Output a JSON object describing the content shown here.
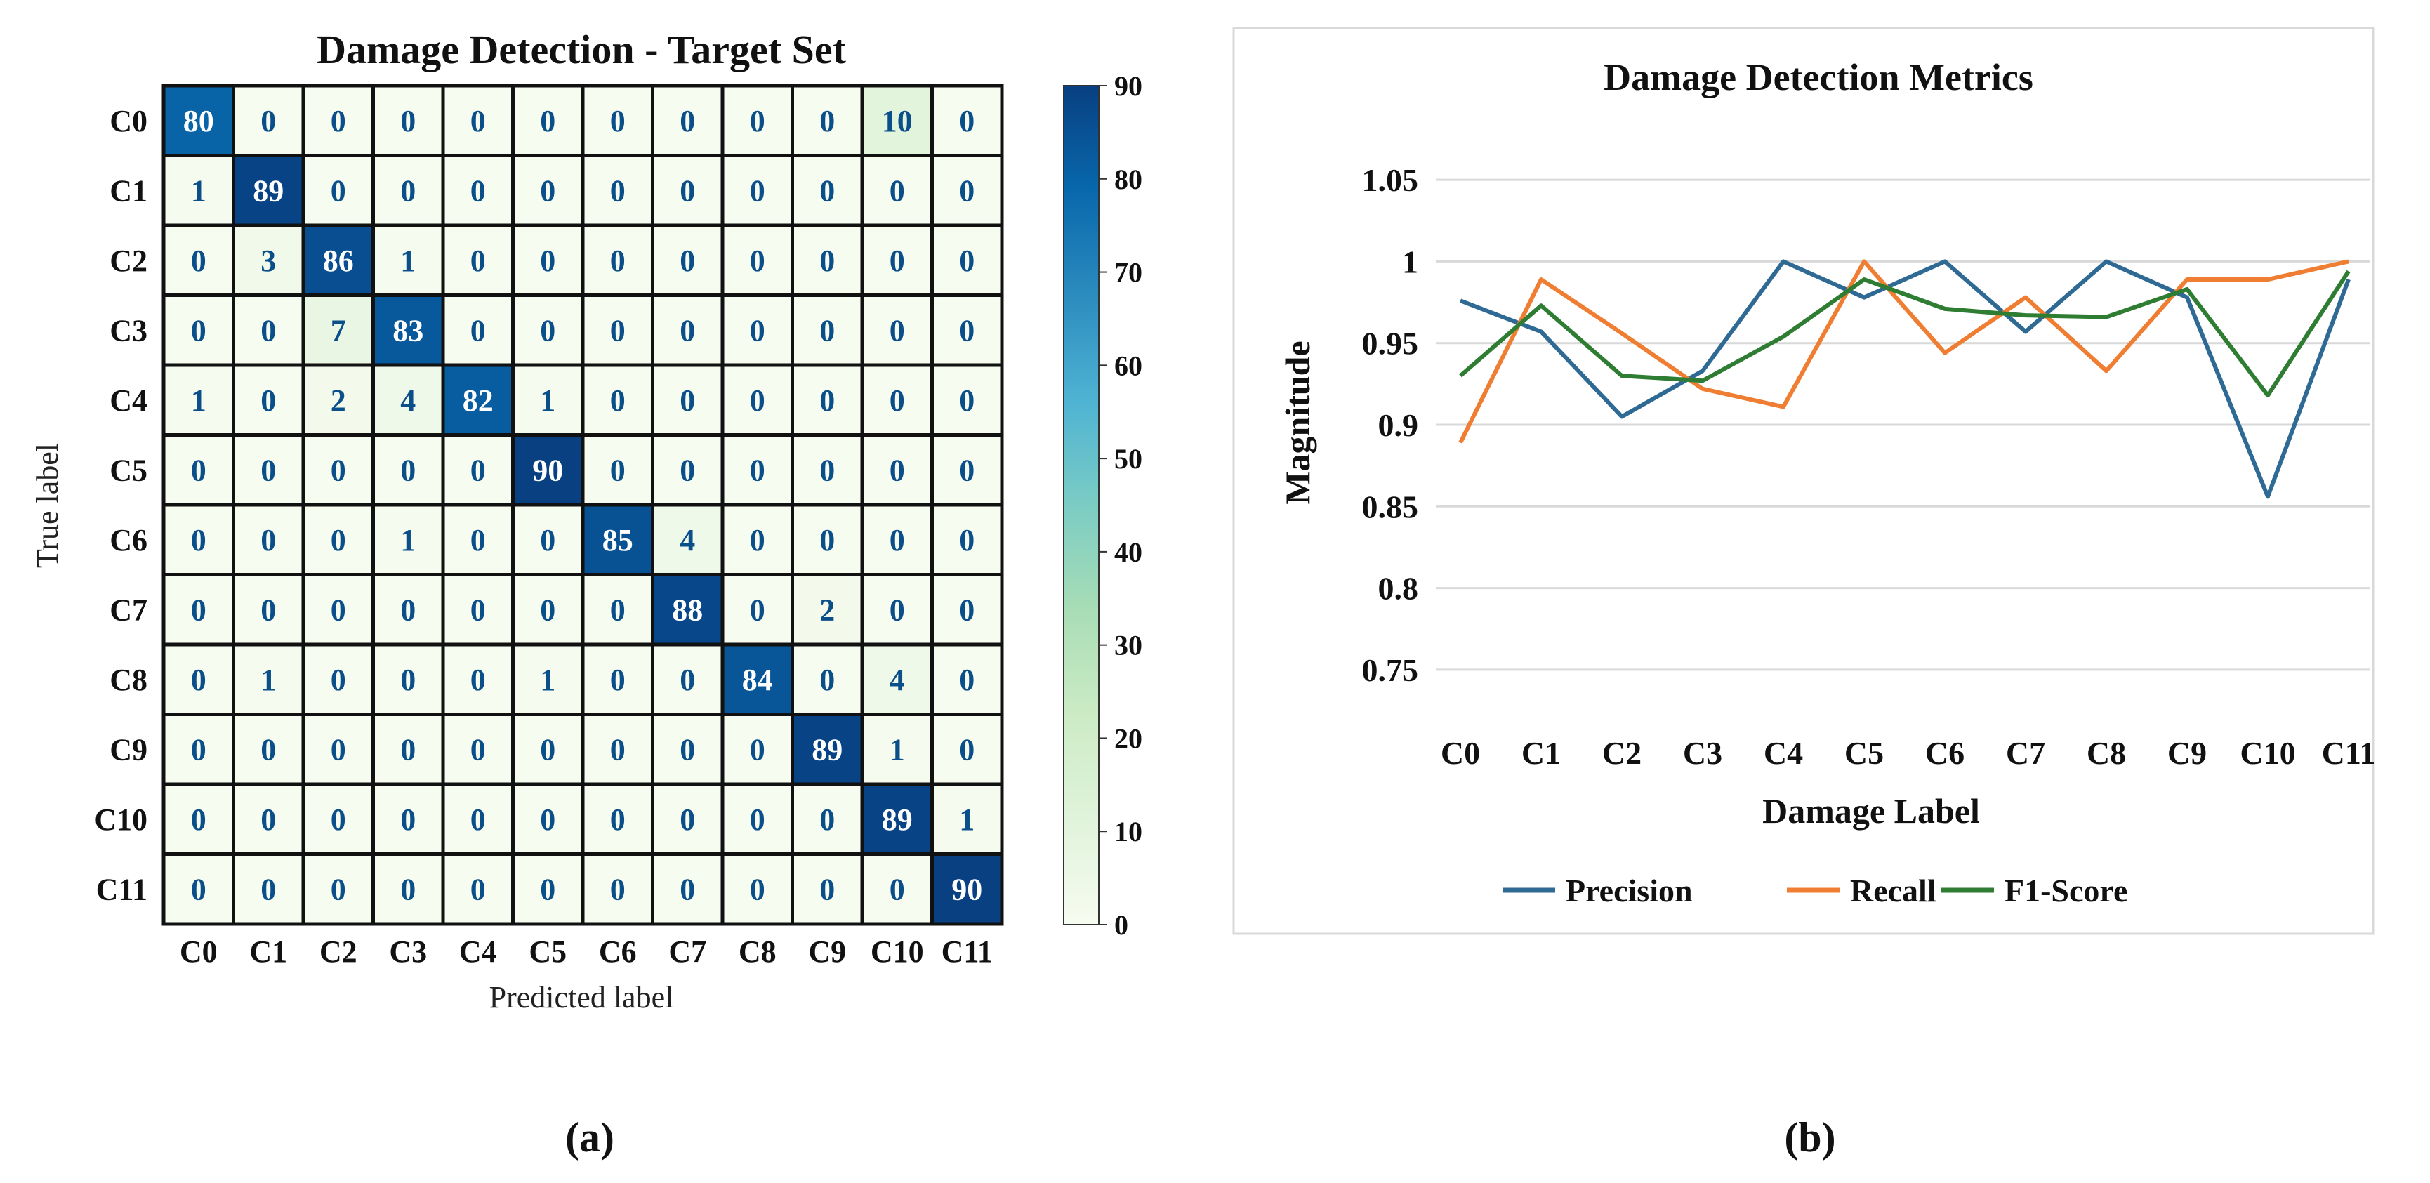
{
  "chart_data": [
    {
      "type": "heatmap",
      "title": "Damage Detection - Target Set",
      "xlabel": "Predicted label",
      "ylabel": "True label",
      "x_categories": [
        "C0",
        "C1",
        "C2",
        "C3",
        "C4",
        "C5",
        "C6",
        "C7",
        "C8",
        "C9",
        "C10",
        "C11"
      ],
      "y_categories": [
        "C0",
        "C1",
        "C2",
        "C3",
        "C4",
        "C5",
        "C6",
        "C7",
        "C8",
        "C9",
        "C10",
        "C11"
      ],
      "matrix": [
        [
          80,
          0,
          0,
          0,
          0,
          0,
          0,
          0,
          0,
          0,
          10,
          0
        ],
        [
          1,
          89,
          0,
          0,
          0,
          0,
          0,
          0,
          0,
          0,
          0,
          0
        ],
        [
          0,
          3,
          86,
          1,
          0,
          0,
          0,
          0,
          0,
          0,
          0,
          0
        ],
        [
          0,
          0,
          7,
          83,
          0,
          0,
          0,
          0,
          0,
          0,
          0,
          0
        ],
        [
          1,
          0,
          2,
          4,
          82,
          1,
          0,
          0,
          0,
          0,
          0,
          0
        ],
        [
          0,
          0,
          0,
          0,
          0,
          90,
          0,
          0,
          0,
          0,
          0,
          0
        ],
        [
          0,
          0,
          0,
          1,
          0,
          0,
          85,
          4,
          0,
          0,
          0,
          0
        ],
        [
          0,
          0,
          0,
          0,
          0,
          0,
          0,
          88,
          0,
          2,
          0,
          0
        ],
        [
          0,
          1,
          0,
          0,
          0,
          1,
          0,
          0,
          84,
          0,
          4,
          0
        ],
        [
          0,
          0,
          0,
          0,
          0,
          0,
          0,
          0,
          0,
          89,
          1,
          0
        ],
        [
          0,
          0,
          0,
          0,
          0,
          0,
          0,
          0,
          0,
          0,
          89,
          1
        ],
        [
          0,
          0,
          0,
          0,
          0,
          0,
          0,
          0,
          0,
          0,
          0,
          90
        ]
      ],
      "colorbar": {
        "min": 0,
        "max": 90,
        "ticks": [
          0,
          10,
          20,
          30,
          40,
          50,
          60,
          70,
          80,
          90
        ],
        "colormap": "GnBu"
      },
      "panel_label": "(a)"
    },
    {
      "type": "line",
      "title": "Damage Detection Metrics",
      "xlabel": "Damage Label",
      "ylabel": "Magnitude",
      "categories": [
        "C0",
        "C1",
        "C2",
        "C3",
        "C4",
        "C5",
        "C6",
        "C7",
        "C8",
        "C9",
        "C10",
        "C11"
      ],
      "ylim": [
        0.725,
        1.075
      ],
      "yticks": [
        0.75,
        0.8,
        0.85,
        0.9,
        0.95,
        1,
        1.05
      ],
      "ytick_labels": [
        "0.75",
        "0.8",
        "0.85",
        "0.9",
        "0.95",
        "1",
        "1.05"
      ],
      "grid": true,
      "legend": "bottom",
      "series": [
        {
          "name": "Precision",
          "color": "#2e6a93",
          "values": [
            0.976,
            0.957,
            0.905,
            0.933,
            1.0,
            0.978,
            1.0,
            0.957,
            1.0,
            0.978,
            0.856,
            0.989
          ]
        },
        {
          "name": "Recall",
          "color": "#ef7d32",
          "values": [
            0.889,
            0.989,
            0.956,
            0.922,
            0.911,
            1.0,
            0.944,
            0.978,
            0.933,
            0.989,
            0.989,
            1.0
          ]
        },
        {
          "name": "F1-Score",
          "color": "#2e7d32",
          "values": [
            0.93,
            0.973,
            0.93,
            0.927,
            0.954,
            0.989,
            0.971,
            0.967,
            0.966,
            0.983,
            0.918,
            0.994
          ]
        }
      ],
      "panel_label": "(b)"
    }
  ]
}
